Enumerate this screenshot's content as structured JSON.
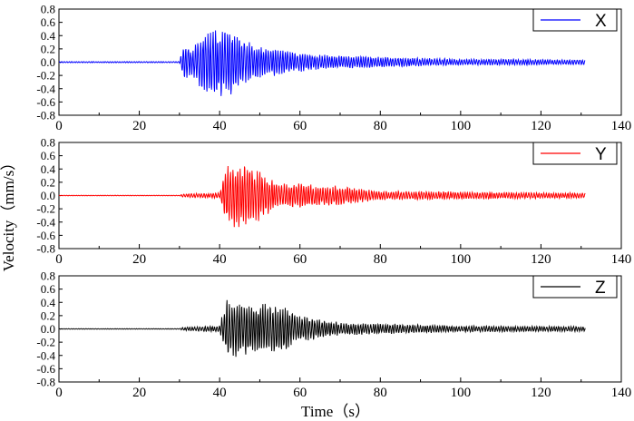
{
  "chart_data": {
    "type": "line",
    "xlabel": "Time（s）",
    "ylabel": "Velocity（mm/s）",
    "xlim": [
      0,
      140
    ],
    "ylim": [
      -0.8,
      0.8
    ],
    "xticks": [
      0,
      20,
      40,
      60,
      80,
      100,
      120,
      140
    ],
    "yticks": [
      0.8,
      0.6,
      0.4,
      0.2,
      0.0,
      -0.2,
      -0.4,
      -0.6,
      -0.8
    ],
    "ytick_labels": [
      "0.8",
      "0.6",
      "0.4",
      "0.2",
      "0.0",
      "-0.2",
      "-0.4",
      "-0.6",
      "-0.8"
    ],
    "grid": false,
    "legend_position": "top-right",
    "panels": [
      {
        "series": {
          "name": "X",
          "color": "#0000ff",
          "x_range": [
            0,
            131
          ],
          "envelope": [
            [
              0,
              0.01
            ],
            [
              30,
              0.01
            ],
            [
              31,
              0.3
            ],
            [
              33,
              0.2
            ],
            [
              35,
              0.4
            ],
            [
              37,
              0.5
            ],
            [
              40,
              0.55
            ],
            [
              43,
              0.5
            ],
            [
              45,
              0.4
            ],
            [
              50,
              0.25
            ],
            [
              55,
              0.2
            ],
            [
              60,
              0.15
            ],
            [
              65,
              0.12
            ],
            [
              70,
              0.1
            ],
            [
              80,
              0.08
            ],
            [
              100,
              0.05
            ],
            [
              131,
              0.04
            ]
          ]
        }
      },
      {
        "series": {
          "name": "Y",
          "color": "#ff0000",
          "x_range": [
            0,
            131
          ],
          "envelope": [
            [
              0,
              0.005
            ],
            [
              30,
              0.005
            ],
            [
              31,
              0.03
            ],
            [
              40,
              0.04
            ],
            [
              41,
              0.3
            ],
            [
              42,
              0.5
            ],
            [
              45,
              0.5
            ],
            [
              48,
              0.45
            ],
            [
              55,
              0.2
            ],
            [
              60,
              0.2
            ],
            [
              65,
              0.15
            ],
            [
              70,
              0.15
            ],
            [
              80,
              0.07
            ],
            [
              100,
              0.06
            ],
            [
              131,
              0.04
            ]
          ]
        }
      },
      {
        "series": {
          "name": "Z",
          "color": "#000000",
          "x_range": [
            0,
            131
          ],
          "envelope": [
            [
              0,
              0.005
            ],
            [
              30,
              0.005
            ],
            [
              31,
              0.03
            ],
            [
              40,
              0.05
            ],
            [
              41,
              0.3
            ],
            [
              42,
              0.5
            ],
            [
              45,
              0.45
            ],
            [
              50,
              0.38
            ],
            [
              55,
              0.38
            ],
            [
              60,
              0.2
            ],
            [
              65,
              0.15
            ],
            [
              70,
              0.1
            ],
            [
              80,
              0.08
            ],
            [
              100,
              0.05
            ],
            [
              131,
              0.04
            ]
          ]
        }
      }
    ]
  }
}
